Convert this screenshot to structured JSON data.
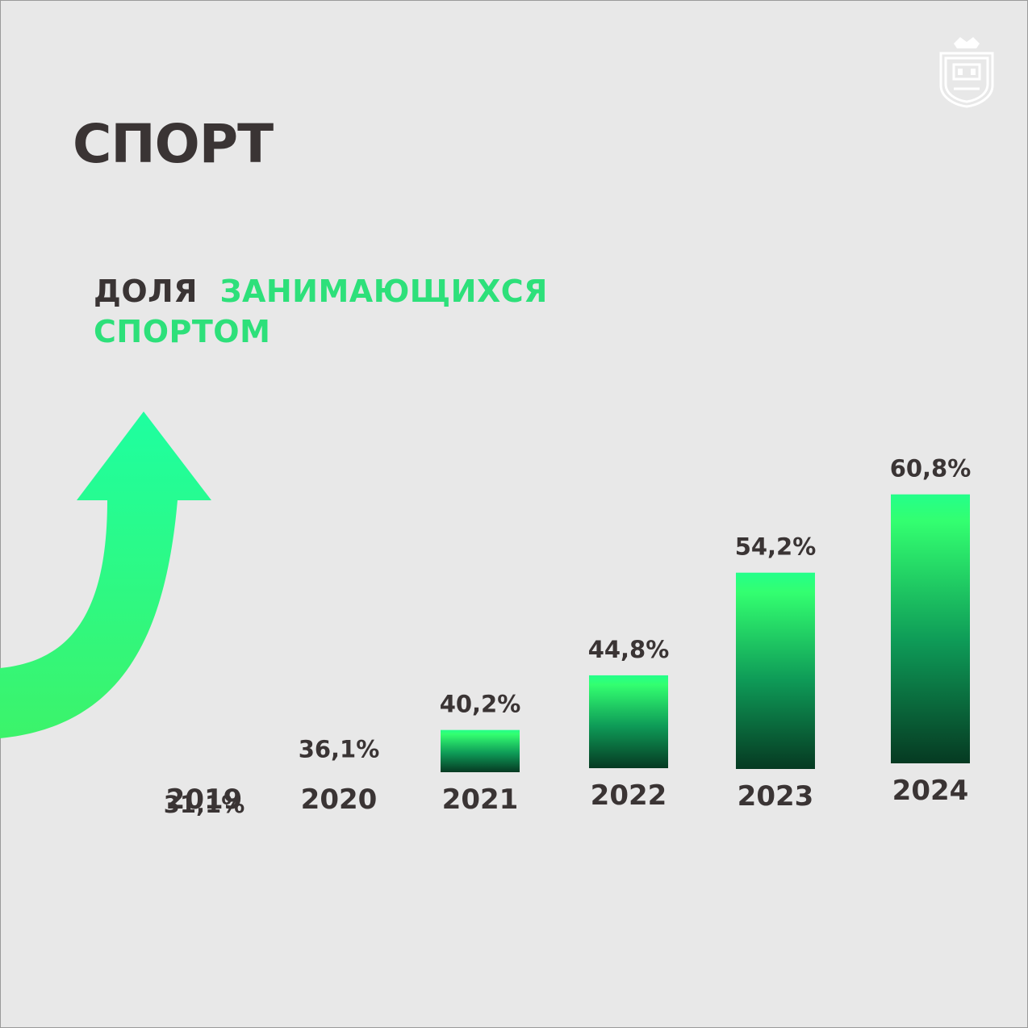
{
  "title": "СПОРТ",
  "subtitle": {
    "part1": "ДОЛЯ",
    "part2": "ЗАНИМАЮЩИХСЯ",
    "part3": "СПОРТОМ"
  },
  "colors": {
    "background": "#e8e8e8",
    "text_dark": "#3a3434",
    "accent_green": "#2de07a",
    "bar_top": "#2bff7a",
    "bar_bottom": "#063a22",
    "arrow": "#2ef27f"
  },
  "icons": {
    "emblem": "coat-of-arms-emblem",
    "arrow": "upward-curved-arrow"
  },
  "chart_data": {
    "type": "bar",
    "categories": [
      "2019",
      "2020",
      "2021",
      "2022",
      "2023",
      "2024"
    ],
    "values": [
      31.1,
      36.1,
      40.2,
      44.8,
      54.2,
      60.8
    ],
    "value_labels": [
      "31,1%",
      "36,1%",
      "40,2%",
      "44,8%",
      "54,2%",
      "60,8%"
    ],
    "unit": "%",
    "grid": false,
    "legend": "none"
  }
}
